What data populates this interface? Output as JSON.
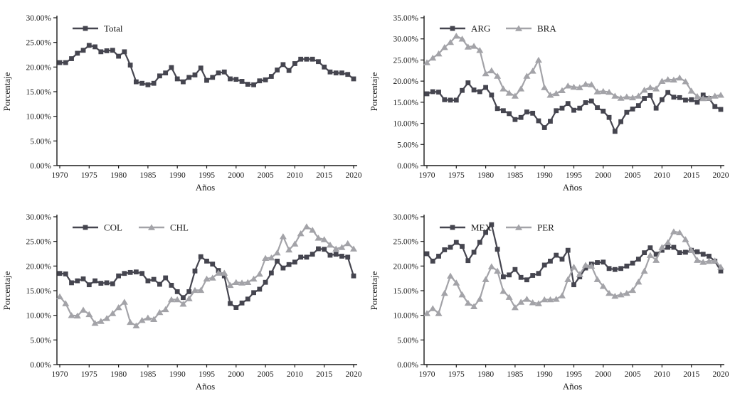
{
  "page": {
    "background": "#ffffff"
  },
  "colors": {
    "dark": "#45454f",
    "light": "#a3a3a8",
    "axis": "#1a1a1a",
    "text": "#1a1a1a"
  },
  "years": [
    1970,
    1971,
    1972,
    1973,
    1974,
    1975,
    1976,
    1977,
    1978,
    1979,
    1980,
    1981,
    1982,
    1983,
    1984,
    1985,
    1986,
    1987,
    1988,
    1989,
    1990,
    1991,
    1992,
    1993,
    1994,
    1995,
    1996,
    1997,
    1998,
    1999,
    2000,
    2001,
    2002,
    2003,
    2004,
    2005,
    2006,
    2007,
    2008,
    2009,
    2010,
    2011,
    2012,
    2013,
    2014,
    2015,
    2016,
    2017,
    2018,
    2019,
    2020
  ],
  "chart_data": [
    {
      "type": "line",
      "name": "total-chart",
      "title": "",
      "xlabel": "Años",
      "ylabel": "Porcentaje",
      "ylim": [
        0,
        30
      ],
      "y_tick_step": 5,
      "y_tick_labels": [
        "0.00%",
        "5.00%",
        "10.00%",
        "15.00%",
        "20.00%",
        "25.00%",
        "30.00%"
      ],
      "x_ticks": [
        1970,
        1975,
        1980,
        1985,
        1990,
        1995,
        2000,
        2005,
        2010,
        2015,
        2020
      ],
      "x_tick_labels": [
        "1970",
        "1975",
        "1980",
        "1985",
        "1990",
        "1995",
        "2000",
        "2005",
        "2010",
        "2015",
        "2020"
      ],
      "grid": false,
      "legend_position": "top-left-inside",
      "series": [
        {
          "name": "Total",
          "marker": "square",
          "color_key": "dark",
          "values": [
            20.9,
            20.9,
            21.7,
            22.8,
            23.4,
            24.4,
            24.1,
            23.1,
            23.3,
            23.4,
            22.2,
            23.1,
            20.4,
            17.0,
            16.7,
            16.4,
            16.7,
            18.2,
            18.8,
            19.9,
            17.6,
            17.0,
            17.9,
            18.4,
            19.8,
            17.3,
            17.9,
            18.8,
            19.0,
            17.6,
            17.5,
            17.1,
            16.5,
            16.4,
            17.2,
            17.4,
            18.1,
            19.4,
            20.5,
            19.3,
            20.7,
            21.6,
            21.6,
            21.6,
            21.1,
            20.0,
            19.0,
            18.8,
            18.8,
            18.5,
            17.6
          ]
        }
      ]
    },
    {
      "type": "line",
      "name": "arg-bra-chart",
      "title": "",
      "xlabel": "Años",
      "ylabel": "Porcentaje",
      "ylim": [
        0,
        35
      ],
      "y_tick_step": 5,
      "y_tick_labels": [
        "0.00%",
        "5.00%",
        "10.00%",
        "15.00%",
        "20.00%",
        "25.00%",
        "30.00%",
        "35.00%"
      ],
      "x_ticks": [
        1970,
        1975,
        1980,
        1985,
        1990,
        1995,
        2000,
        2005,
        2010,
        2015,
        2020
      ],
      "x_tick_labels": [
        "1970",
        "1975",
        "1980",
        "1985",
        "1990",
        "1995",
        "2000",
        "2005",
        "2010",
        "2015",
        "2020"
      ],
      "grid": false,
      "legend_position": "top-left-inside",
      "series": [
        {
          "name": "ARG",
          "marker": "square",
          "color_key": "dark",
          "values": [
            17.0,
            17.5,
            17.4,
            15.6,
            15.5,
            15.5,
            17.8,
            19.6,
            17.9,
            17.5,
            18.5,
            16.7,
            13.5,
            13.0,
            12.3,
            10.9,
            11.4,
            12.7,
            12.4,
            10.6,
            9.0,
            10.5,
            13.0,
            13.6,
            14.7,
            13.1,
            13.6,
            14.9,
            15.3,
            13.7,
            12.9,
            11.4,
            8.1,
            10.4,
            12.6,
            13.4,
            14.2,
            15.9,
            16.6,
            13.6,
            15.6,
            17.3,
            16.2,
            16.1,
            15.5,
            15.6,
            15.0,
            16.7,
            15.9,
            14.0,
            13.3
          ]
        },
        {
          "name": "BRA",
          "marker": "triangle",
          "color_key": "light",
          "values": [
            24.4,
            25.5,
            26.5,
            28.0,
            29.2,
            30.7,
            30.0,
            28.1,
            28.3,
            27.3,
            21.8,
            22.5,
            21.2,
            18.2,
            17.2,
            16.5,
            18.2,
            21.2,
            22.4,
            25.0,
            18.5,
            16.7,
            17.1,
            17.8,
            18.9,
            18.6,
            18.5,
            19.3,
            19.2,
            17.5,
            17.6,
            17.4,
            16.5,
            16.0,
            16.3,
            16.1,
            16.5,
            17.9,
            18.5,
            18.2,
            20.0,
            20.4,
            20.3,
            20.8,
            19.9,
            17.7,
            16.4,
            15.9,
            16.0,
            16.5,
            16.7
          ]
        }
      ]
    },
    {
      "type": "line",
      "name": "col-chl-chart",
      "title": "",
      "xlabel": "Años",
      "ylabel": "Porcentaje",
      "ylim": [
        0,
        30
      ],
      "y_tick_step": 5,
      "y_tick_labels": [
        "0.00%",
        "5.00%",
        "10.00%",
        "15.00%",
        "20.00%",
        "25.00%",
        "30.00%"
      ],
      "x_ticks": [
        1970,
        1975,
        1980,
        1985,
        1990,
        1995,
        2000,
        2005,
        2010,
        2015,
        2020
      ],
      "x_tick_labels": [
        "1970",
        "1975",
        "1980",
        "1985",
        "1990",
        "1995",
        "2000",
        "2005",
        "2010",
        "2015",
        "2020"
      ],
      "grid": false,
      "legend_position": "top-left-inside",
      "series": [
        {
          "name": "COL",
          "marker": "square",
          "color_key": "dark",
          "values": [
            18.5,
            18.4,
            16.6,
            17.0,
            17.4,
            16.2,
            17.0,
            16.5,
            16.6,
            16.4,
            18.0,
            18.5,
            18.7,
            18.8,
            18.5,
            17.0,
            17.3,
            16.3,
            17.6,
            16.1,
            14.8,
            13.6,
            14.8,
            19.0,
            21.9,
            21.0,
            20.4,
            19.1,
            18.0,
            12.4,
            11.6,
            12.5,
            13.3,
            14.6,
            15.3,
            16.7,
            18.6,
            21.0,
            19.6,
            20.3,
            20.8,
            21.8,
            21.8,
            22.4,
            23.5,
            23.4,
            22.2,
            22.4,
            22.0,
            21.8,
            18.0
          ]
        },
        {
          "name": "CHL",
          "marker": "triangle",
          "color_key": "light",
          "values": [
            13.8,
            12.4,
            10.0,
            9.9,
            11.1,
            10.2,
            8.4,
            8.8,
            9.4,
            10.4,
            11.6,
            12.7,
            8.6,
            7.9,
            9.0,
            9.5,
            9.2,
            10.6,
            11.2,
            13.2,
            13.2,
            12.3,
            13.4,
            15.1,
            15.1,
            17.4,
            17.6,
            18.6,
            18.6,
            16.1,
            16.7,
            16.6,
            16.7,
            17.4,
            18.4,
            21.6,
            21.7,
            22.7,
            26.0,
            23.3,
            24.5,
            26.6,
            28.0,
            27.3,
            25.7,
            25.4,
            24.3,
            23.5,
            23.8,
            24.6,
            23.5
          ]
        }
      ]
    },
    {
      "type": "line",
      "name": "mex-per-chart",
      "title": "",
      "xlabel": "Años",
      "ylabel": "Porcentaje",
      "ylim": [
        0,
        30
      ],
      "y_tick_step": 5,
      "y_tick_labels": [
        "0.00%",
        "5.00%",
        "10.00%",
        "15.00%",
        "20.00%",
        "25.00%",
        "30.00%"
      ],
      "x_ticks": [
        1970,
        1975,
        1980,
        1985,
        1990,
        1995,
        2000,
        2005,
        2010,
        2015,
        2020
      ],
      "x_tick_labels": [
        "1970",
        "1975",
        "1980",
        "1985",
        "1990",
        "1995",
        "2000",
        "2005",
        "2010",
        "2015",
        "2020"
      ],
      "grid": false,
      "legend_position": "top-left-inside",
      "series": [
        {
          "name": "MEX",
          "marker": "square",
          "color_key": "dark",
          "values": [
            22.5,
            21.0,
            22.0,
            23.3,
            23.8,
            24.8,
            24.0,
            21.1,
            22.8,
            24.8,
            26.8,
            28.4,
            23.4,
            17.8,
            18.2,
            19.3,
            17.7,
            17.2,
            18.1,
            18.5,
            20.2,
            21.0,
            22.2,
            21.4,
            23.2,
            16.2,
            17.8,
            19.6,
            20.4,
            20.7,
            20.8,
            19.5,
            19.3,
            19.5,
            20.0,
            20.6,
            21.4,
            22.7,
            23.7,
            22.4,
            23.2,
            23.8,
            23.8,
            22.7,
            22.8,
            23.2,
            22.9,
            22.4,
            22.0,
            21.0,
            19.0
          ]
        },
        {
          "name": "PER",
          "marker": "triangle",
          "color_key": "light",
          "values": [
            10.4,
            11.4,
            10.4,
            14.5,
            18.0,
            16.6,
            14.2,
            12.5,
            11.8,
            13.3,
            17.3,
            19.9,
            19.0,
            14.9,
            13.7,
            11.6,
            12.7,
            13.3,
            12.6,
            12.4,
            13.2,
            13.2,
            13.3,
            14.0,
            17.3,
            19.8,
            18.3,
            20.2,
            20.0,
            17.3,
            15.9,
            14.5,
            13.9,
            14.2,
            14.5,
            15.1,
            16.8,
            19.0,
            22.2,
            21.2,
            23.8,
            24.8,
            27.0,
            26.8,
            25.4,
            23.2,
            21.2,
            20.8,
            21.0,
            21.1,
            19.8
          ]
        }
      ]
    }
  ]
}
